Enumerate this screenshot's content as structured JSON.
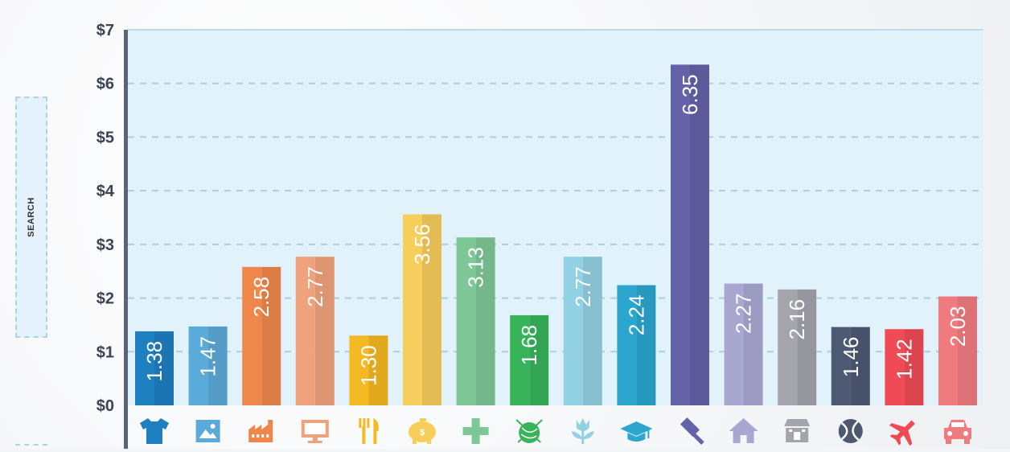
{
  "sidebar": {
    "search_label": "SEARCH"
  },
  "chart_data": {
    "type": "bar",
    "categories": [
      "Fashion",
      "Photos",
      "Manufacturing",
      "Technology",
      "Food",
      "Finance",
      "Health",
      "Crafts",
      "Gardening",
      "Education",
      "Legal",
      "Home",
      "Retail",
      "Sports",
      "Travel",
      "Auto"
    ],
    "values": [
      1.38,
      1.47,
      2.58,
      2.77,
      1.3,
      3.56,
      3.13,
      1.68,
      2.77,
      2.24,
      6.35,
      2.27,
      2.16,
      1.46,
      1.42,
      2.03
    ],
    "value_labels": [
      "1.38",
      "1.47",
      "2.58",
      "2.77",
      "1.30",
      "3.56",
      "3.13",
      "1.68",
      "2.77",
      "2.24",
      "6.35",
      "2.27",
      "2.16",
      "1.46",
      "1.42",
      "2.03"
    ],
    "icons": [
      "tshirt-icon",
      "image-icon",
      "factory-icon",
      "monitor-icon",
      "utensils-icon",
      "piggy-bank-icon",
      "plus-icon",
      "yarn-icon",
      "flower-icon",
      "graduation-cap-icon",
      "gavel-icon",
      "home-icon",
      "store-icon",
      "tennis-ball-icon",
      "plane-icon",
      "car-icon"
    ],
    "colors": [
      "#1e7fc1",
      "#5aabd9",
      "#f0874a",
      "#f0a27c",
      "#f5b921",
      "#f7cd5b",
      "#7ec797",
      "#37b45a",
      "#92d1e3",
      "#2aa6cf",
      "#6462a8",
      "#a9a7d2",
      "#a3a4ac",
      "#4d5973",
      "#ef4a55",
      "#f07b7f"
    ],
    "yticks": [
      "$0",
      "$1",
      "$2",
      "$3",
      "$4",
      "$5",
      "$6",
      "$7"
    ],
    "ylim": [
      0,
      7
    ],
    "grid": true,
    "title": "",
    "xlabel": "",
    "ylabel": ""
  }
}
